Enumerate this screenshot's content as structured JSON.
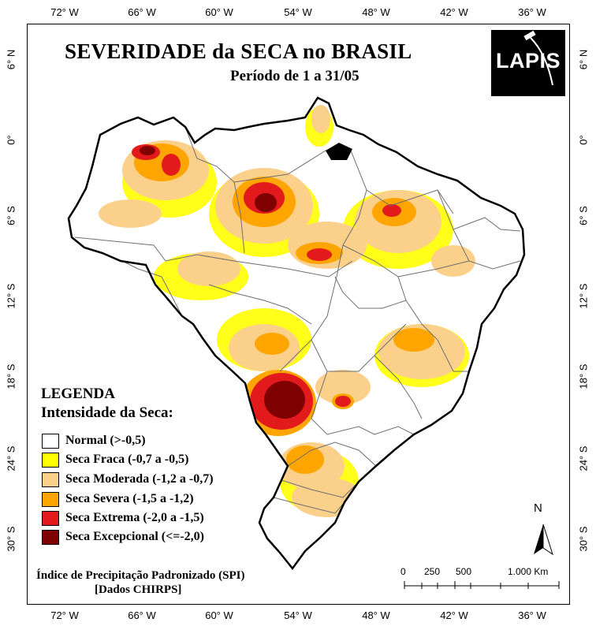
{
  "map": {
    "title": "SEVERIDADE da SECA no BRASIL",
    "subtitle": "Período de 1 a 31/05",
    "logo_text": "LAPIS",
    "longitude_ticks": [
      "72° W",
      "66° W",
      "60° W",
      "54° W",
      "48° W",
      "42° W",
      "36° W"
    ],
    "latitude_ticks": [
      "6° N",
      "0°",
      "6° S",
      "12° S",
      "18° S",
      "24° S",
      "30° S"
    ],
    "north_label": "N",
    "legend": {
      "title": "LEGENDA",
      "subtitle": "Intensidade da Seca:",
      "items": [
        {
          "label": "Normal (>-0,5)",
          "color": "#ffffff"
        },
        {
          "label": "Seca Fraca (-0,7 a -0,5)",
          "color": "#ffff00"
        },
        {
          "label": "Seca Moderada (-1,2 a -0,7)",
          "color": "#fbd08a"
        },
        {
          "label": "Seca Severa (-1,5 a -1,2)",
          "color": "#ffa500"
        },
        {
          "label": "Seca Extrema (-2,0 a -1,5)",
          "color": "#e31a1c"
        },
        {
          "label": "Seca Excepcional (<=-2,0)",
          "color": "#7f0000"
        }
      ]
    },
    "footnote_line1": "Índice de Precipitação Padronizado (SPI)",
    "footnote_line2": "[Dados CHIRPS]",
    "scale_bar": {
      "labels": [
        "0",
        "250",
        "500",
        "1.000 Km"
      ]
    }
  }
}
